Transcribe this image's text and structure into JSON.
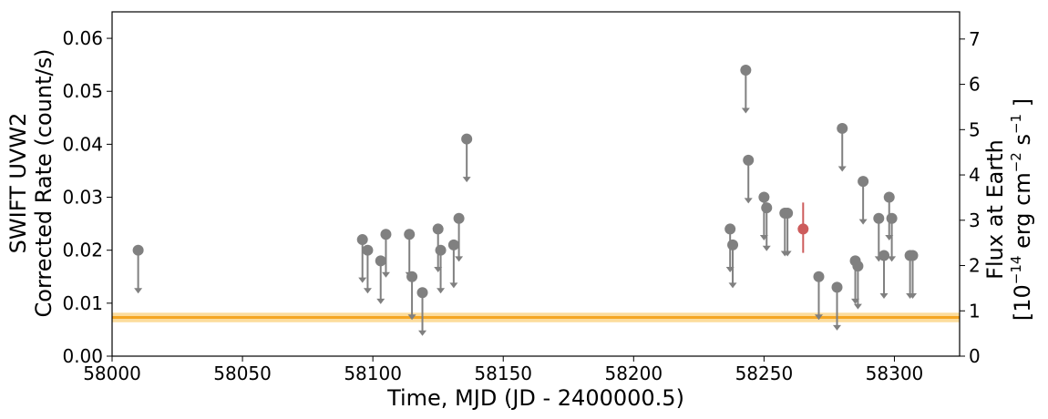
{
  "chart_data": {
    "type": "scatter",
    "title": "",
    "xlabel": "Time, MJD (JD - 2400000.5)",
    "ylabel_lines": [
      "SWIFT UVW2",
      "Corrected Rate (count/s)"
    ],
    "y2label_lines": [
      "Flux at Earth",
      "[10^-14 erg cm^-2 s^-1 ]"
    ],
    "y2label_parts": {
      "line2_pre": "[10",
      "line2_exp1": "−14",
      "line2_mid": " erg cm",
      "line2_exp2": "−2",
      "line2_mid2": " s",
      "line2_exp3": "−1",
      "line2_post": " ]"
    },
    "xlim": [
      58000,
      58325
    ],
    "ylim": [
      0,
      0.065
    ],
    "y2lim": [
      0,
      7.6
    ],
    "xticks": [
      58000,
      58050,
      58100,
      58150,
      58200,
      58250,
      58300
    ],
    "xtick_labels": [
      "58000",
      "58050",
      "58100",
      "58150",
      "58200",
      "58250",
      "58300"
    ],
    "yticks": [
      0,
      0.01,
      0.02,
      0.03,
      0.04,
      0.05,
      0.06
    ],
    "ytick_labels": [
      "0.00",
      "0.01",
      "0.02",
      "0.03",
      "0.04",
      "0.05",
      "0.06"
    ],
    "y2ticks": [
      0,
      1,
      2,
      3,
      4,
      5,
      6,
      7
    ],
    "y2tick_labels": [
      "0",
      "1",
      "2",
      "3",
      "4",
      "5",
      "6",
      "7"
    ],
    "grid": false,
    "colors": {
      "upper_limit": "#808080",
      "detection": "#cd5c5c",
      "band": "#f5a623",
      "band_fill": "#fcd891"
    },
    "reference_band": {
      "center": 0.0073,
      "low": 0.0064,
      "high": 0.0082
    },
    "upper_limits": [
      {
        "x": 58010,
        "y": 0.02,
        "arrow_to": 0.012
      },
      {
        "x": 58096,
        "y": 0.022,
        "arrow_to": 0.014
      },
      {
        "x": 58098,
        "y": 0.02,
        "arrow_to": 0.012
      },
      {
        "x": 58103,
        "y": 0.018,
        "arrow_to": 0.01
      },
      {
        "x": 58105,
        "y": 0.023,
        "arrow_to": 0.015
      },
      {
        "x": 58114,
        "y": 0.023,
        "arrow_to": 0.015
      },
      {
        "x": 58115,
        "y": 0.015,
        "arrow_to": 0.007
      },
      {
        "x": 58119,
        "y": 0.012,
        "arrow_to": 0.004
      },
      {
        "x": 58125,
        "y": 0.024,
        "arrow_to": 0.016
      },
      {
        "x": 58126,
        "y": 0.02,
        "arrow_to": 0.012
      },
      {
        "x": 58131,
        "y": 0.021,
        "arrow_to": 0.013
      },
      {
        "x": 58133,
        "y": 0.026,
        "arrow_to": 0.018
      },
      {
        "x": 58136,
        "y": 0.041,
        "arrow_to": 0.033
      },
      {
        "x": 58237,
        "y": 0.024,
        "arrow_to": 0.016
      },
      {
        "x": 58238,
        "y": 0.021,
        "arrow_to": 0.013
      },
      {
        "x": 58243,
        "y": 0.054,
        "arrow_to": 0.046
      },
      {
        "x": 58244,
        "y": 0.037,
        "arrow_to": 0.029
      },
      {
        "x": 58250,
        "y": 0.03,
        "arrow_to": 0.022
      },
      {
        "x": 58251,
        "y": 0.028,
        "arrow_to": 0.02
      },
      {
        "x": 58258,
        "y": 0.027,
        "arrow_to": 0.019
      },
      {
        "x": 58259,
        "y": 0.027,
        "arrow_to": 0.019
      },
      {
        "x": 58271,
        "y": 0.015,
        "arrow_to": 0.007
      },
      {
        "x": 58278,
        "y": 0.013,
        "arrow_to": 0.005
      },
      {
        "x": 58280,
        "y": 0.043,
        "arrow_to": 0.035
      },
      {
        "x": 58285,
        "y": 0.018,
        "arrow_to": 0.01
      },
      {
        "x": 58286,
        "y": 0.017,
        "arrow_to": 0.009
      },
      {
        "x": 58288,
        "y": 0.033,
        "arrow_to": 0.025
      },
      {
        "x": 58294,
        "y": 0.026,
        "arrow_to": 0.018
      },
      {
        "x": 58296,
        "y": 0.019,
        "arrow_to": 0.011
      },
      {
        "x": 58298,
        "y": 0.03,
        "arrow_to": 0.022
      },
      {
        "x": 58299,
        "y": 0.026,
        "arrow_to": 0.018
      },
      {
        "x": 58306,
        "y": 0.019,
        "arrow_to": 0.011
      },
      {
        "x": 58307,
        "y": 0.019,
        "arrow_to": 0.011
      }
    ],
    "detections": [
      {
        "x": 58265,
        "y": 0.024,
        "err_low": 0.0195,
        "err_high": 0.029
      }
    ]
  }
}
